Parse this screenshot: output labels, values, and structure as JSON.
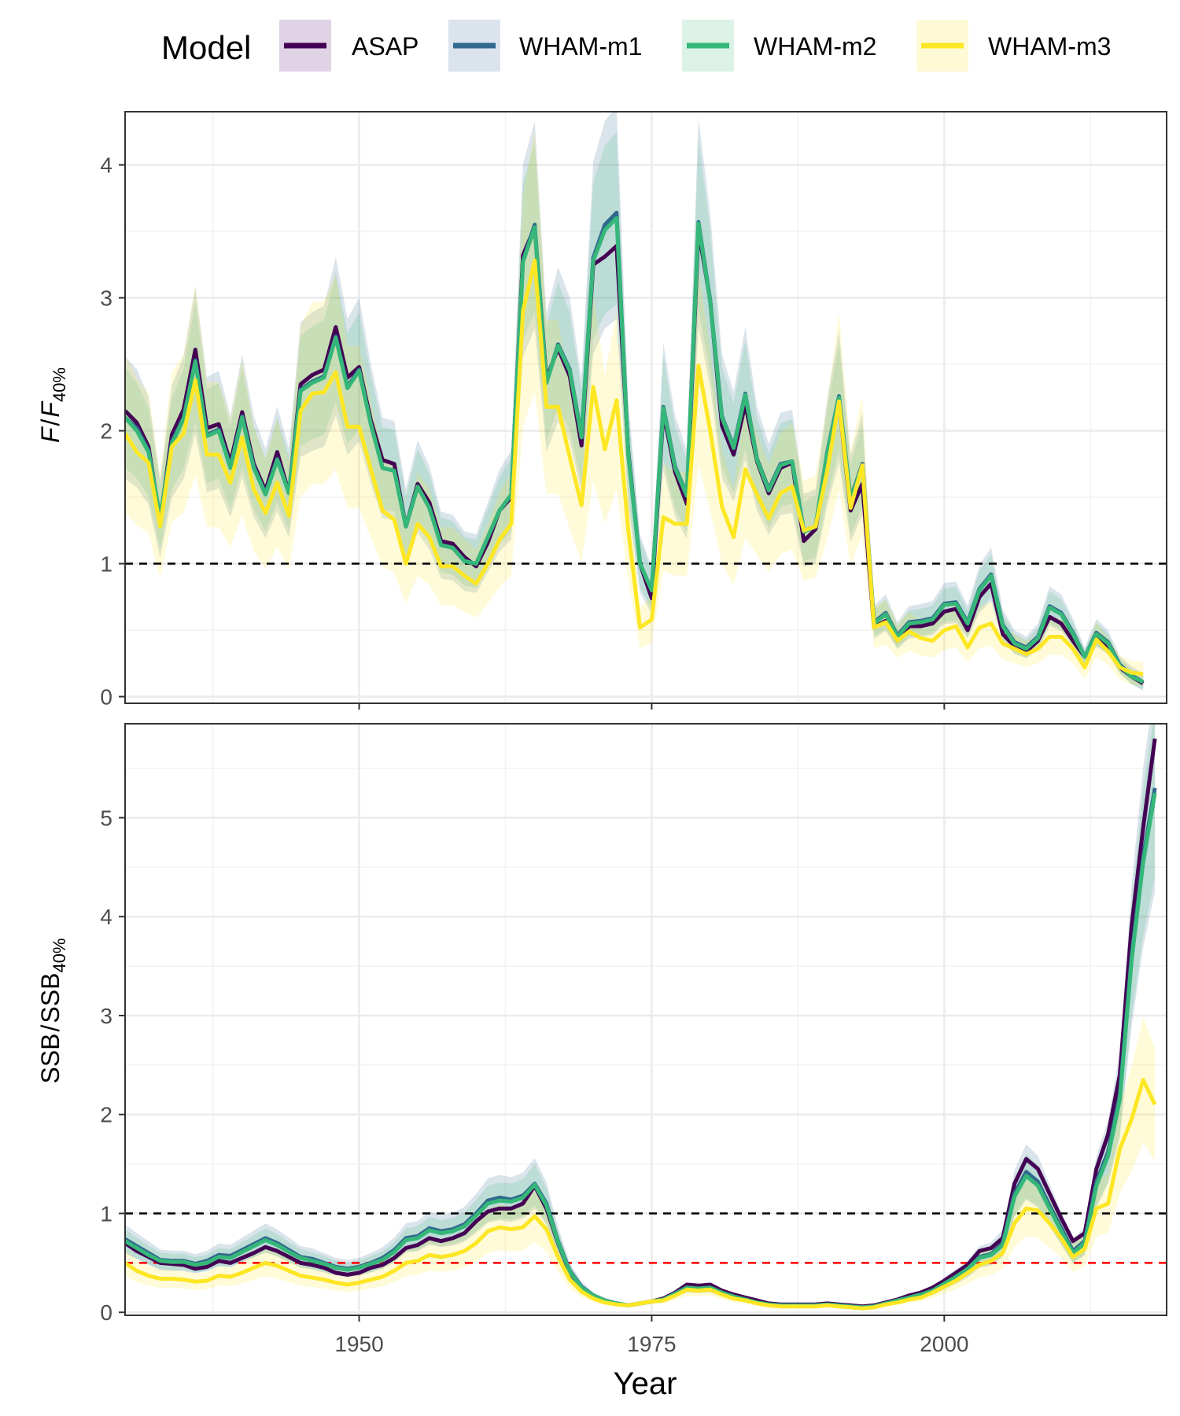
{
  "legend": {
    "title": "Model",
    "entries": [
      {
        "name": "ASAP",
        "color": "#440154",
        "fill": "#e1d3e6"
      },
      {
        "name": "WHAM-m1",
        "color": "#31688e",
        "fill": "#dbe3ec"
      },
      {
        "name": "WHAM-m2",
        "color": "#35b779",
        "fill": "#dcf2e6"
      },
      {
        "name": "WHAM-m3",
        "color": "#fde725",
        "fill": "#fffad6"
      }
    ]
  },
  "chart_data": [
    {
      "type": "line",
      "panel": "top",
      "ylabel_main": "F",
      "ylabel_denom": "F",
      "ylabel_sub": "40%",
      "xlim": [
        1930,
        2019
      ],
      "ylim": [
        -0.05,
        4.4
      ],
      "yticks": [
        0,
        1,
        2,
        3,
        4
      ],
      "hline": {
        "y": 1,
        "color": "#000000"
      },
      "grid": true,
      "x_start": 1930,
      "series": [
        {
          "name": "ASAP",
          "values": [
            2.15,
            2.06,
            1.88,
            1.32,
            1.97,
            2.16,
            2.61,
            2.02,
            2.05,
            1.76,
            2.14,
            1.75,
            1.55,
            1.84,
            1.53,
            2.35,
            2.42,
            2.46,
            2.78,
            2.4,
            2.48,
            2.08,
            1.78,
            1.75,
            1.28,
            1.6,
            1.46,
            1.17,
            1.15,
            1.05,
            0.98,
            1.16,
            1.4,
            1.5,
            3.32,
            3.53,
            2.39,
            2.62,
            2.41,
            1.89,
            3.25,
            3.31,
            3.39,
            1.84,
            1.0,
            0.74,
            2.14,
            1.69,
            1.45,
            3.51,
            2.98,
            2.04,
            1.82,
            2.2,
            1.77,
            1.53,
            1.72,
            1.76,
            1.17,
            1.26,
            1.76,
            2.22,
            1.4,
            1.6,
            0.52,
            0.57,
            0.42,
            0.53,
            0.53,
            0.55,
            0.64,
            0.66,
            0.5,
            0.75,
            0.85,
            0.47,
            0.38,
            0.34,
            0.42,
            0.6,
            0.55,
            0.42,
            0.3,
            0.44,
            0.38,
            0.22,
            0.15,
            0.1
          ]
        },
        {
          "name": "WHAM-m1",
          "values": [
            2.1,
            2.02,
            1.85,
            1.34,
            1.92,
            2.1,
            2.53,
            1.97,
            2.01,
            1.73,
            2.11,
            1.73,
            1.53,
            1.79,
            1.53,
            2.31,
            2.37,
            2.41,
            2.71,
            2.33,
            2.46,
            2.05,
            1.72,
            1.7,
            1.28,
            1.58,
            1.42,
            1.14,
            1.12,
            1.02,
            1.0,
            1.2,
            1.4,
            1.52,
            3.28,
            3.55,
            2.36,
            2.65,
            2.46,
            1.96,
            3.3,
            3.55,
            3.64,
            1.82,
            1.0,
            0.8,
            2.18,
            1.73,
            1.52,
            3.57,
            2.98,
            2.11,
            1.88,
            2.28,
            1.79,
            1.56,
            1.75,
            1.77,
            1.25,
            1.28,
            1.84,
            2.26,
            1.49,
            1.75,
            0.56,
            0.63,
            0.46,
            0.56,
            0.57,
            0.59,
            0.7,
            0.71,
            0.56,
            0.81,
            0.92,
            0.54,
            0.41,
            0.37,
            0.45,
            0.68,
            0.63,
            0.48,
            0.3,
            0.48,
            0.41,
            0.24,
            0.16,
            0.11
          ]
        },
        {
          "name": "WHAM-m2",
          "values": [
            2.1,
            2.0,
            1.84,
            1.35,
            1.9,
            2.09,
            2.52,
            1.96,
            2.0,
            1.72,
            2.1,
            1.72,
            1.52,
            1.78,
            1.53,
            2.3,
            2.36,
            2.4,
            2.7,
            2.32,
            2.45,
            2.05,
            1.72,
            1.7,
            1.28,
            1.58,
            1.42,
            1.14,
            1.12,
            1.02,
            1.0,
            1.2,
            1.4,
            1.52,
            3.27,
            3.53,
            2.36,
            2.64,
            2.45,
            1.95,
            3.28,
            3.51,
            3.6,
            1.82,
            1.0,
            0.8,
            2.17,
            1.72,
            1.51,
            3.56,
            2.97,
            2.1,
            1.87,
            2.27,
            1.78,
            1.55,
            1.74,
            1.77,
            1.24,
            1.28,
            1.83,
            2.25,
            1.48,
            1.74,
            0.55,
            0.62,
            0.45,
            0.55,
            0.56,
            0.58,
            0.69,
            0.7,
            0.55,
            0.8,
            0.91,
            0.53,
            0.4,
            0.36,
            0.44,
            0.67,
            0.62,
            0.47,
            0.3,
            0.47,
            0.4,
            0.23,
            0.15,
            0.11
          ]
        },
        {
          "name": "WHAM-m3",
          "values": [
            1.98,
            1.84,
            1.76,
            1.28,
            1.88,
            1.98,
            2.38,
            1.82,
            1.82,
            1.61,
            1.95,
            1.56,
            1.38,
            1.61,
            1.36,
            2.15,
            2.28,
            2.29,
            2.44,
            2.03,
            2.03,
            1.71,
            1.4,
            1.33,
            1.0,
            1.3,
            1.2,
            0.98,
            0.98,
            0.91,
            0.85,
            1.0,
            1.18,
            1.3,
            2.9,
            3.28,
            2.18,
            2.18,
            1.8,
            1.44,
            2.33,
            1.86,
            2.23,
            1.25,
            0.52,
            0.58,
            1.35,
            1.3,
            1.3,
            2.49,
            2.0,
            1.43,
            1.2,
            1.71,
            1.52,
            1.34,
            1.53,
            1.58,
            1.25,
            1.28,
            1.7,
            2.22,
            1.42,
            1.74,
            0.52,
            0.56,
            0.42,
            0.49,
            0.44,
            0.42,
            0.5,
            0.53,
            0.37,
            0.52,
            0.55,
            0.4,
            0.36,
            0.32,
            0.36,
            0.45,
            0.45,
            0.36,
            0.22,
            0.43,
            0.34,
            0.22,
            0.18,
            0.17
          ]
        }
      ]
    },
    {
      "type": "line",
      "panel": "bottom",
      "ylabel_main": "SSB",
      "ylabel_denom": "SSB",
      "ylabel_sub": "40%",
      "xlabel": "Year",
      "xlim": [
        1930,
        2019
      ],
      "xticks": [
        "1950",
        "1975",
        "2000"
      ],
      "ylim": [
        -0.03,
        5.95
      ],
      "yticks": [
        0,
        1,
        2,
        3,
        4,
        5
      ],
      "hlines": [
        {
          "y": 1,
          "color": "#000000"
        },
        {
          "y": 0.5,
          "color": "#ff0000"
        }
      ],
      "grid": true,
      "x_start": 1930,
      "series": [
        {
          "name": "ASAP",
          "values": [
            0.7,
            0.62,
            0.56,
            0.5,
            0.49,
            0.48,
            0.44,
            0.46,
            0.52,
            0.5,
            0.55,
            0.6,
            0.66,
            0.62,
            0.56,
            0.5,
            0.48,
            0.45,
            0.4,
            0.38,
            0.4,
            0.45,
            0.48,
            0.55,
            0.65,
            0.68,
            0.75,
            0.72,
            0.75,
            0.8,
            0.92,
            1.02,
            1.05,
            1.05,
            1.1,
            1.28,
            1.05,
            0.7,
            0.4,
            0.25,
            0.17,
            0.12,
            0.09,
            0.07,
            0.09,
            0.11,
            0.14,
            0.2,
            0.28,
            0.27,
            0.28,
            0.22,
            0.18,
            0.15,
            0.12,
            0.09,
            0.08,
            0.08,
            0.08,
            0.08,
            0.09,
            0.08,
            0.07,
            0.06,
            0.07,
            0.1,
            0.13,
            0.17,
            0.2,
            0.25,
            0.32,
            0.4,
            0.48,
            0.62,
            0.65,
            0.75,
            1.3,
            1.55,
            1.45,
            1.2,
            0.95,
            0.72,
            0.8,
            1.45,
            1.8,
            2.4,
            3.9,
            4.9,
            5.8
          ]
        },
        {
          "name": "WHAM-m1",
          "values": [
            0.74,
            0.67,
            0.6,
            0.53,
            0.52,
            0.52,
            0.49,
            0.52,
            0.58,
            0.57,
            0.63,
            0.69,
            0.75,
            0.7,
            0.63,
            0.56,
            0.54,
            0.5,
            0.46,
            0.44,
            0.46,
            0.5,
            0.55,
            0.63,
            0.75,
            0.77,
            0.85,
            0.82,
            0.84,
            0.89,
            1.0,
            1.13,
            1.16,
            1.14,
            1.18,
            1.3,
            1.1,
            0.72,
            0.42,
            0.26,
            0.17,
            0.12,
            0.09,
            0.07,
            0.09,
            0.11,
            0.13,
            0.19,
            0.25,
            0.24,
            0.25,
            0.2,
            0.16,
            0.13,
            0.1,
            0.08,
            0.07,
            0.07,
            0.07,
            0.07,
            0.08,
            0.07,
            0.06,
            0.05,
            0.06,
            0.09,
            0.12,
            0.15,
            0.18,
            0.22,
            0.29,
            0.36,
            0.44,
            0.56,
            0.59,
            0.7,
            1.2,
            1.42,
            1.32,
            1.08,
            0.85,
            0.62,
            0.72,
            1.32,
            1.62,
            2.2,
            3.6,
            4.6,
            5.3
          ]
        },
        {
          "name": "WHAM-m2",
          "values": [
            0.72,
            0.65,
            0.58,
            0.52,
            0.51,
            0.51,
            0.48,
            0.5,
            0.56,
            0.55,
            0.61,
            0.67,
            0.73,
            0.68,
            0.61,
            0.55,
            0.52,
            0.49,
            0.45,
            0.43,
            0.45,
            0.49,
            0.53,
            0.61,
            0.73,
            0.75,
            0.83,
            0.8,
            0.82,
            0.87,
            0.98,
            1.1,
            1.13,
            1.12,
            1.16,
            1.29,
            1.08,
            0.71,
            0.41,
            0.25,
            0.17,
            0.12,
            0.09,
            0.07,
            0.09,
            0.11,
            0.13,
            0.19,
            0.25,
            0.24,
            0.25,
            0.2,
            0.16,
            0.13,
            0.1,
            0.08,
            0.07,
            0.07,
            0.07,
            0.07,
            0.08,
            0.07,
            0.06,
            0.05,
            0.06,
            0.09,
            0.12,
            0.15,
            0.18,
            0.22,
            0.29,
            0.36,
            0.44,
            0.55,
            0.58,
            0.68,
            1.17,
            1.38,
            1.28,
            1.05,
            0.82,
            0.6,
            0.7,
            1.28,
            1.58,
            2.15,
            3.55,
            4.55,
            5.25
          ]
        },
        {
          "name": "WHAM-m3",
          "values": [
            0.5,
            0.42,
            0.37,
            0.34,
            0.34,
            0.33,
            0.31,
            0.32,
            0.37,
            0.36,
            0.4,
            0.45,
            0.5,
            0.47,
            0.42,
            0.37,
            0.35,
            0.33,
            0.3,
            0.28,
            0.3,
            0.33,
            0.36,
            0.42,
            0.5,
            0.52,
            0.58,
            0.56,
            0.58,
            0.62,
            0.7,
            0.82,
            0.86,
            0.84,
            0.86,
            0.97,
            0.84,
            0.56,
            0.33,
            0.21,
            0.14,
            0.1,
            0.08,
            0.07,
            0.09,
            0.11,
            0.12,
            0.17,
            0.23,
            0.22,
            0.23,
            0.18,
            0.14,
            0.12,
            0.09,
            0.07,
            0.06,
            0.06,
            0.06,
            0.06,
            0.07,
            0.06,
            0.05,
            0.04,
            0.05,
            0.08,
            0.1,
            0.13,
            0.15,
            0.2,
            0.26,
            0.32,
            0.4,
            0.48,
            0.52,
            0.6,
            0.9,
            1.05,
            1.03,
            0.9,
            0.75,
            0.56,
            0.64,
            1.05,
            1.1,
            1.65,
            1.95,
            2.35,
            2.1
          ]
        }
      ]
    }
  ]
}
